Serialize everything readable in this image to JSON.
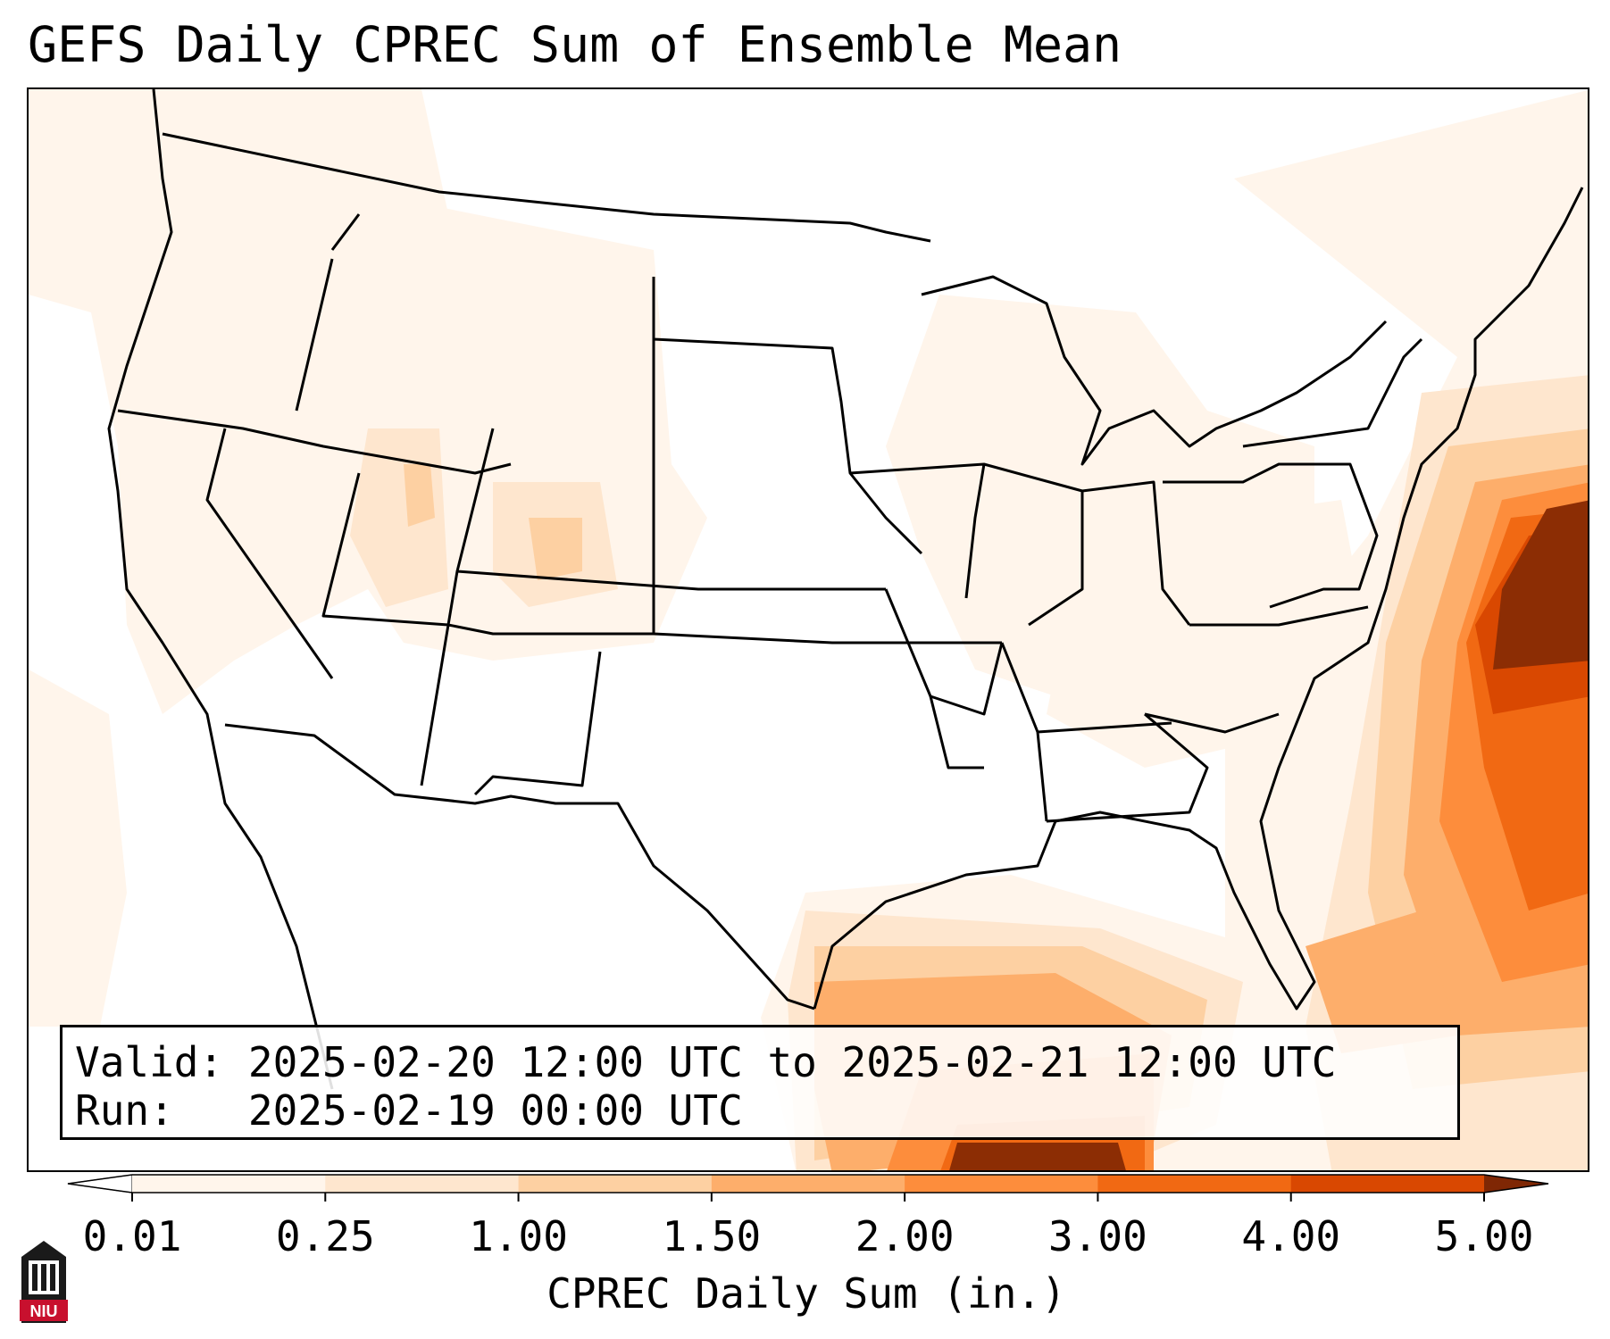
{
  "title": "GEFS Daily CPREC Sum of Ensemble Mean",
  "info": {
    "valid_label": "Valid:",
    "valid_value": "2025-02-20 12:00 UTC to 2025-02-21 12:00 UTC",
    "run_label": "Run:",
    "run_value": "2025-02-19 00:00 UTC"
  },
  "colorbar": {
    "title": "CPREC Daily Sum (in.)",
    "ticks": [
      "0.01",
      "0.25",
      "1.00",
      "1.50",
      "2.00",
      "3.00",
      "4.00",
      "5.00"
    ],
    "colors": [
      "#fff5eb",
      "#fee6ce",
      "#fdd0a2",
      "#fdae6b",
      "#fd8d3c",
      "#f16913",
      "#d94801",
      "#8c2d04"
    ],
    "under_color": "#ffffff",
    "over_color": "#7f2704"
  },
  "logo": {
    "text": "NIU",
    "color": "#c8102e"
  }
}
